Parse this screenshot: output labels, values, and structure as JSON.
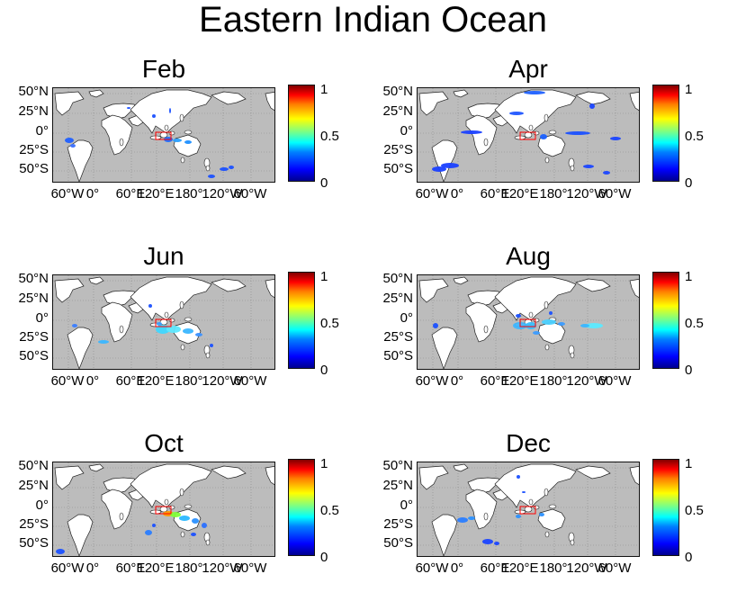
{
  "title": "Eastern Indian Ocean",
  "y_ticks": [
    "50°N",
    "25°N",
    "0°",
    "25°S",
    "50°S"
  ],
  "x_ticks": [
    "60°W",
    "0°",
    "60°E",
    "120°E",
    "180°",
    "120°W",
    "60°W"
  ],
  "colorbar_ticks": [
    "1",
    "0.5",
    "0"
  ],
  "colors": {
    "ocean": "#bcbcbc",
    "land": "#ffffff",
    "box": "#ff0000"
  },
  "panels": [
    {
      "label": "Feb"
    },
    {
      "label": "Apr"
    },
    {
      "label": "Jun"
    },
    {
      "label": "Aug"
    },
    {
      "label": "Oct"
    },
    {
      "label": "Dec"
    }
  ]
}
